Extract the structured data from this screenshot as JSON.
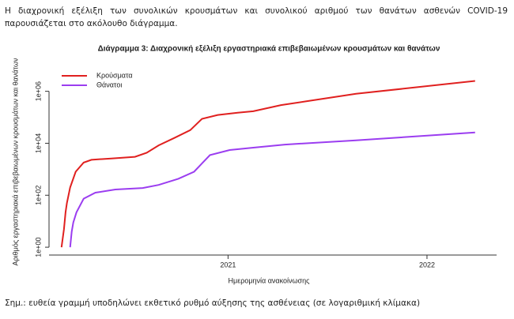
{
  "intro": "Η διαχρονική εξέλιξη των συνολικών κρουσμάτων και συνολικού αριθμού των θανάτων ασθενών COVID-19 παρουσιάζεται στο ακόλουθο διάγραμμα.",
  "note": "Σημ.: ευθεία γραμμή υποδηλώνει εκθετικό ρυθμό αύξησης της ασθένειας (σε λογαριθμική κλίμακα)",
  "chart_data": {
    "type": "line",
    "title": "Διάγραμμα 3: Διαχρονική εξέλιξη εργαστηριακά επιβεβαιωμένων κρουσμάτων και θανάτων",
    "x_label": "Ημερομηνία ανακοίνωσης",
    "y_label": "Αριθμός εργαστηριακά επιβεβαιωμένων κρουσμάτων και θανάτων",
    "log_y": true,
    "legend": "top-left",
    "xlim": [
      2020.1,
      2022.35
    ],
    "xticks": [
      2021,
      2022
    ],
    "ylim": [
      0.5,
      6000000
    ],
    "yticks": [
      {
        "value": 1,
        "label": "1e+00"
      },
      {
        "value": 100,
        "label": "1e+02"
      },
      {
        "value": 10000,
        "label": "1e+04"
      },
      {
        "value": 1000000,
        "label": "1e+06"
      }
    ],
    "series": [
      {
        "name": "Κρούσματα",
        "color": "#e0201f",
        "x": [
          2020.163,
          2020.175,
          2020.183,
          2020.19,
          2020.206,
          2020.234,
          2020.274,
          2020.313,
          2020.413,
          2020.532,
          2020.591,
          2020.651,
          2020.73,
          2020.81,
          2020.869,
          2020.948,
          2021.048,
          2021.127,
          2021.266,
          2021.643,
          2022.242
        ],
        "values": [
          1,
          5,
          22,
          50,
          200,
          800,
          1800,
          2300,
          2600,
          3000,
          4300,
          8300,
          16000,
          32000,
          87000,
          123000,
          150000,
          170000,
          295000,
          800000,
          2500000
        ]
      },
      {
        "name": "Θάνατοι",
        "color": "#9b3df0",
        "x": [
          2020.206,
          2020.214,
          2020.222,
          2020.238,
          2020.274,
          2020.333,
          2020.433,
          2020.571,
          2020.651,
          2020.75,
          2020.829,
          2020.909,
          2021.008,
          2021.127,
          2021.286,
          2021.643,
          2022.242
        ],
        "values": [
          1,
          4,
          9,
          22,
          74,
          126,
          166,
          190,
          250,
          430,
          800,
          3500,
          5500,
          6800,
          8900,
          13000,
          26000
        ]
      }
    ]
  }
}
